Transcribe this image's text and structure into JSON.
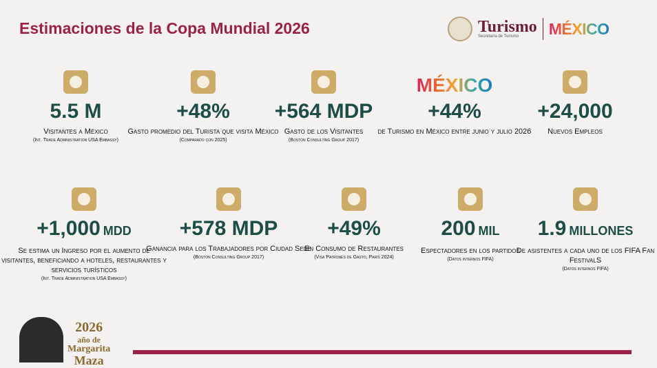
{
  "header": {
    "title": "Estimaciones de la Copa Mundial 2026",
    "brand": "Turismo",
    "brand_sub": "Secretaría de Turismo",
    "country": "MÉXICO"
  },
  "stats": [
    {
      "value": "5.5 M",
      "label": "Visitantes a México",
      "source": "(Int. Trade Administration USA Embassy)"
    },
    {
      "value": "+48%",
      "label": "Gasto promedio del Turista que visita México",
      "source": "(Comparado con 2025)"
    },
    {
      "value": "+564 MDP",
      "label": "Gasto de los Visitantes",
      "source": "(Boston Consulting Group 2017)"
    },
    {
      "icon_text": "MÉXICO",
      "value": "+44%",
      "label": "de Turismo en México entre junio y julio 2026"
    },
    {
      "value": "+24,000",
      "label": "Nuevos Empleos"
    },
    {
      "value": "+1,000",
      "unit": "MDD",
      "label": "Se estima un Ingreso por el aumento de visitantes, beneficiando a hoteles, restaurantes y servicios turísticos",
      "source": "(Int. Trade Administration USA Embassy)"
    },
    {
      "value": "+578 MDP",
      "label": "Ganancia para los Trabajadores por Ciudad Sede",
      "source": "(Boston Consulting Group 2017)"
    },
    {
      "value": "+49%",
      "label": "En Consumo de Restaurantes",
      "source": "(Visa Patrones de Gasto, París 2024)"
    },
    {
      "value": "200",
      "unit": "MIL",
      "label": "Espectadores en los partidos",
      "source": "(Datos internos FIFA)"
    },
    {
      "value": "1.9",
      "unit": "MILLONES",
      "label": "De asistentes a cada uno de los FIFA Fan FestivalS",
      "source": "(Datos internos FIFA)"
    }
  ],
  "footer": {
    "year": "2026",
    "line1": "año de",
    "line2": "Margarita",
    "line3": "Maza"
  }
}
